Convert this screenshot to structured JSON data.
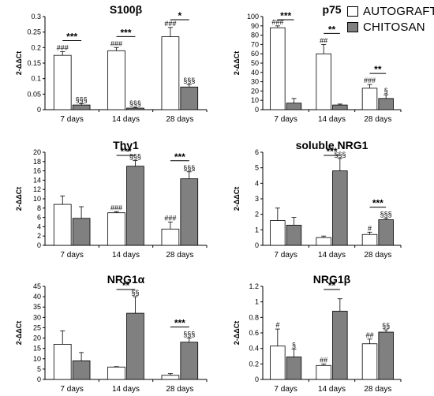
{
  "legend": {
    "items": [
      {
        "label": "AUTOGRAFT",
        "color": "#ffffff"
      },
      {
        "label": "CHITOSAN",
        "color": "#808080"
      }
    ]
  },
  "chart_data": [
    {
      "type": "bar",
      "title": "S100β",
      "ylabel": "2-ΔΔCt",
      "categories": [
        "7 days",
        "14 days",
        "28 days"
      ],
      "ylim": [
        0,
        0.3
      ],
      "yticks": [
        "0",
        "0.05",
        "0.1",
        "0.15",
        "0.2",
        "0.25",
        "0.3"
      ],
      "series": [
        {
          "name": "AUTOGRAFT",
          "values": [
            0.175,
            0.19,
            0.235
          ],
          "errors": [
            0.012,
            0.01,
            0.03
          ],
          "labels": [
            "###",
            "###",
            "###"
          ]
        },
        {
          "name": "CHITOSAN",
          "values": [
            0.015,
            0.005,
            0.073
          ],
          "errors": [
            0.004,
            0.002,
            0.008
          ],
          "labels": [
            "§§§",
            "§§§",
            "§§§"
          ]
        }
      ],
      "brackets": [
        "***",
        "***",
        "*"
      ]
    },
    {
      "type": "bar",
      "title": "p75",
      "ylabel": "2-ΔΔCt",
      "categories": [
        "7 days",
        "14 days",
        "28 days"
      ],
      "ylim": [
        0,
        100
      ],
      "yticks": [
        "0",
        "10",
        "20",
        "30",
        "40",
        "50",
        "60",
        "70",
        "80",
        "90",
        "100"
      ],
      "series": [
        {
          "name": "AUTOGRAFT",
          "values": [
            88,
            60,
            23
          ],
          "errors": [
            2,
            10,
            4
          ],
          "labels": [
            "###",
            "##",
            "###"
          ]
        },
        {
          "name": "CHITOSAN",
          "values": [
            7,
            5,
            12
          ],
          "errors": [
            5,
            1,
            4
          ],
          "labels": [
            "",
            "",
            "§"
          ]
        }
      ],
      "brackets": [
        "***",
        "**",
        "**"
      ]
    },
    {
      "type": "bar",
      "title": "Thy1",
      "ylabel": "2-ΔΔCt",
      "categories": [
        "7 days",
        "14 days",
        "28 days"
      ],
      "ylim": [
        0,
        20
      ],
      "yticks": [
        "0",
        "2",
        "4",
        "6",
        "8",
        "10",
        "12",
        "14",
        "16",
        "18",
        "20"
      ],
      "series": [
        {
          "name": "AUTOGRAFT",
          "values": [
            8.8,
            7,
            3.5
          ],
          "errors": [
            1.8,
            0.2,
            1.5
          ],
          "labels": [
            "",
            "###",
            "###"
          ]
        },
        {
          "name": "CHITOSAN",
          "values": [
            5.8,
            17,
            14.3
          ],
          "errors": [
            2.5,
            1.2,
            1.5
          ],
          "labels": [
            "",
            "§§§",
            "§§§"
          ]
        }
      ],
      "brackets": [
        "",
        "***",
        "***"
      ]
    },
    {
      "type": "bar",
      "title": "soluble NRG1",
      "ylabel": "2-ΔΔCt",
      "categories": [
        "7 days",
        "14 days",
        "28 days"
      ],
      "ylim": [
        0,
        6
      ],
      "yticks": [
        "0",
        "1",
        "2",
        "3",
        "4",
        "5",
        "6"
      ],
      "series": [
        {
          "name": "AUTOGRAFT",
          "values": [
            1.6,
            0.5,
            0.7
          ],
          "errors": [
            0.8,
            0.1,
            0.15
          ],
          "labels": [
            "",
            "",
            "#"
          ]
        },
        {
          "name": "CHITOSAN",
          "values": [
            1.3,
            4.8,
            1.65
          ],
          "errors": [
            0.5,
            0.8,
            0.1
          ],
          "labels": [
            "",
            "§§§",
            "§§§"
          ]
        }
      ],
      "brackets": [
        "",
        "***",
        "***"
      ]
    },
    {
      "type": "bar",
      "title": "NRG1α",
      "ylabel": "2-ΔΔCt",
      "categories": [
        "7 days",
        "14 days",
        "28 days"
      ],
      "ylim": [
        0,
        45
      ],
      "yticks": [
        "0",
        "5",
        "10",
        "15",
        "20",
        "25",
        "30",
        "35",
        "40",
        "45"
      ],
      "series": [
        {
          "name": "AUTOGRAFT",
          "values": [
            17,
            6,
            2
          ],
          "errors": [
            6.5,
            0.2,
            0.8
          ],
          "labels": [
            "",
            "",
            ""
          ]
        },
        {
          "name": "CHITOSAN",
          "values": [
            9,
            32,
            18
          ],
          "errors": [
            4,
            8,
            2
          ],
          "labels": [
            "",
            "§§",
            "§§§"
          ]
        }
      ],
      "brackets": [
        "",
        "**",
        "***"
      ]
    },
    {
      "type": "bar",
      "title": "NRG1β",
      "ylabel": "2-ΔΔCt",
      "categories": [
        "7 days",
        "14 days",
        "28 days"
      ],
      "ylim": [
        0,
        1.2
      ],
      "yticks": [
        "0",
        "0.2",
        "0.4",
        "0.6",
        "0.8",
        "1",
        "1.2"
      ],
      "series": [
        {
          "name": "AUTOGRAFT",
          "values": [
            0.43,
            0.18,
            0.46
          ],
          "errors": [
            0.22,
            0.02,
            0.06
          ],
          "labels": [
            "#",
            "##",
            "##"
          ]
        },
        {
          "name": "CHITOSAN",
          "values": [
            0.29,
            0.88,
            0.61
          ],
          "errors": [
            0.1,
            0.16,
            0.03
          ],
          "labels": [
            "§",
            "",
            "§§"
          ]
        }
      ],
      "brackets": [
        "",
        "**",
        ""
      ]
    }
  ]
}
